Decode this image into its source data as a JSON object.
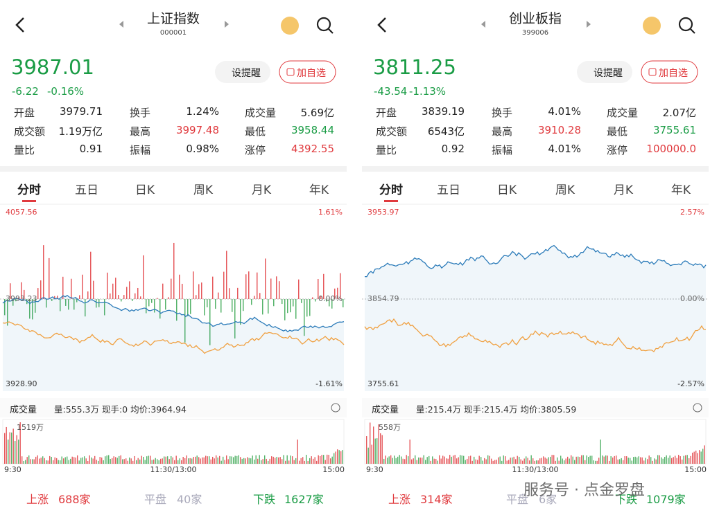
{
  "panels": [
    {
      "title": "上证指数",
      "code": "000001",
      "price": "3987.01",
      "change": "-6.22",
      "change_pct": "-0.16%",
      "alert_button": "设提醒",
      "watch_button": "加自选",
      "stats": [
        [
          [
            "开盘",
            "3979.71"
          ],
          [
            "换手",
            "1.24%"
          ],
          [
            "成交量",
            "5.69亿"
          ]
        ],
        [
          [
            "成交额",
            "1.19万亿"
          ],
          [
            "最高",
            "3997.48"
          ],
          [
            "最低",
            "3958.44"
          ]
        ],
        [
          [
            "量比",
            "0.91"
          ],
          [
            "振幅",
            "0.98%"
          ],
          [
            "涨停",
            "4392.55"
          ]
        ]
      ],
      "tabs": [
        "分时",
        "五日",
        "日K",
        "周K",
        "月K",
        "年K"
      ],
      "chart": {
        "high": "4057.56",
        "high_pct": "1.61%",
        "mid": "3993.23",
        "mid_pct": "0.00%",
        "low": "3928.90",
        "low_pct": "-1.61%"
      },
      "volume": {
        "label": "成交量",
        "info": "量:555.3万  现手:0  均价:3964.94",
        "max": "1519万",
        "times": [
          "9:30",
          "11:30/13:00",
          "15:00"
        ]
      },
      "footer": {
        "up_label": "上涨",
        "up_count": "688家",
        "flat_label": "平盘",
        "flat_count": "40家",
        "down_label": "下跌",
        "down_count": "1627家"
      }
    },
    {
      "title": "创业板指",
      "code": "399006",
      "price": "3811.25",
      "change": "-43.54",
      "change_pct": "-1.13%",
      "alert_button": "设提醒",
      "watch_button": "加自选",
      "stats": [
        [
          [
            "开盘",
            "3839.19"
          ],
          [
            "换手",
            "4.01%"
          ],
          [
            "成交量",
            "2.07亿"
          ]
        ],
        [
          [
            "成交额",
            "6543亿"
          ],
          [
            "最高",
            "3910.28"
          ],
          [
            "最低",
            "3755.61"
          ]
        ],
        [
          [
            "量比",
            "0.92"
          ],
          [
            "振幅",
            "4.01%"
          ],
          [
            "涨停",
            "100000.0"
          ]
        ]
      ],
      "tabs": [
        "分时",
        "五日",
        "日K",
        "周K",
        "月K",
        "年K"
      ],
      "chart": {
        "high": "3953.97",
        "high_pct": "2.57%",
        "mid": "3854.79",
        "mid_pct": "0.00%",
        "low": "3755.61",
        "low_pct": "-2.57%"
      },
      "volume": {
        "label": "成交量",
        "info": "量:215.4万  现手:215.4万  均价:3805.59",
        "max": "558万",
        "times": [
          "9:30",
          "11:30/13:00",
          "15:00"
        ]
      },
      "footer": {
        "up_label": "上涨",
        "up_count": "314家",
        "flat_label": "平盘",
        "flat_count": "6家",
        "down_label": "下跌",
        "down_count": "1079家"
      }
    }
  ],
  "watermark": "服务号 · 点金罗盘"
}
